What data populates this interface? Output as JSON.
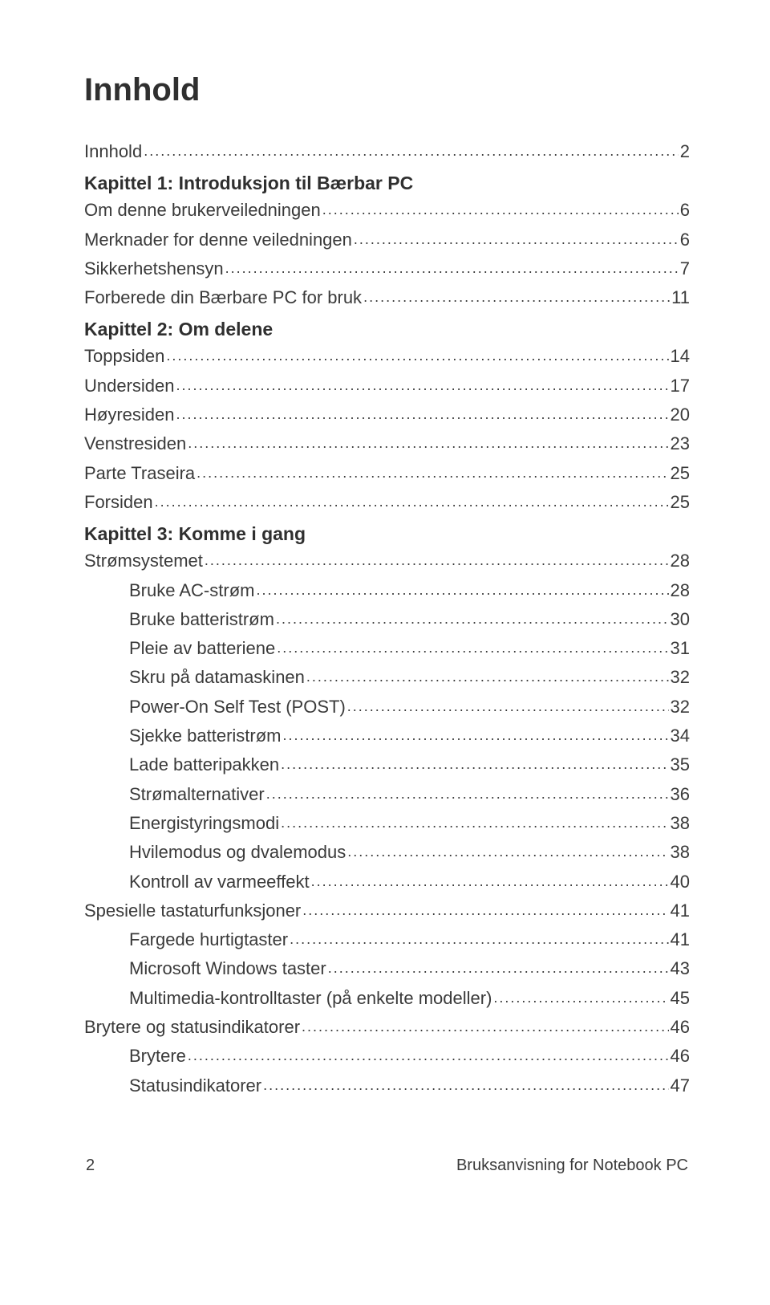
{
  "title": "Innhold",
  "toc": [
    {
      "kind": "entry",
      "level": 1,
      "label": "Innhold",
      "page": "2"
    },
    {
      "kind": "chapter",
      "label": "Kapittel 1: Introduksjon til Bærbar PC"
    },
    {
      "kind": "entry",
      "level": 1,
      "label": "Om denne brukerveiledningen",
      "page": "6"
    },
    {
      "kind": "entry",
      "level": 1,
      "label": "Merknader for denne veiledningen",
      "page": "6"
    },
    {
      "kind": "entry",
      "level": 1,
      "label": "Sikkerhetshensyn",
      "page": "7"
    },
    {
      "kind": "entry",
      "level": 1,
      "label": "Forberede din Bærbare PC for bruk",
      "page": "11"
    },
    {
      "kind": "chapter",
      "label": "Kapittel 2: Om delene"
    },
    {
      "kind": "entry",
      "level": 1,
      "label": "Toppsiden",
      "page": "14"
    },
    {
      "kind": "entry",
      "level": 1,
      "label": "Undersiden",
      "page": "17"
    },
    {
      "kind": "entry",
      "level": 1,
      "label": "Høyresiden",
      "page": "20"
    },
    {
      "kind": "entry",
      "level": 1,
      "label": "Venstresiden",
      "page": "23"
    },
    {
      "kind": "entry",
      "level": 1,
      "label": "Parte Traseira",
      "page": "25"
    },
    {
      "kind": "entry",
      "level": 1,
      "label": "Forsiden",
      "page": "25"
    },
    {
      "kind": "chapter",
      "label": "Kapittel 3: Komme i gang"
    },
    {
      "kind": "entry",
      "level": 1,
      "label": "Strømsystemet",
      "page": "28"
    },
    {
      "kind": "entry",
      "level": 2,
      "label": "Bruke AC-strøm",
      "page": "28"
    },
    {
      "kind": "entry",
      "level": 2,
      "label": "Bruke batteristrøm",
      "page": "30"
    },
    {
      "kind": "entry",
      "level": 2,
      "label": "Pleie av batteriene",
      "page": "31"
    },
    {
      "kind": "entry",
      "level": 2,
      "label": "Skru på datamaskinen",
      "page": "32"
    },
    {
      "kind": "entry",
      "level": 2,
      "label": "Power-On Self Test (POST)",
      "page": "32"
    },
    {
      "kind": "entry",
      "level": 2,
      "label": "Sjekke batteristrøm",
      "page": "34"
    },
    {
      "kind": "entry",
      "level": 2,
      "label": "Lade batteripakken",
      "page": "35"
    },
    {
      "kind": "entry",
      "level": 2,
      "label": "Strømalternativer",
      "page": "36"
    },
    {
      "kind": "entry",
      "level": 2,
      "label": "Energistyringsmodi",
      "page": "38"
    },
    {
      "kind": "entry",
      "level": 2,
      "label": "Hvilemodus og dvalemodus",
      "page": "38"
    },
    {
      "kind": "entry",
      "level": 2,
      "label": "Kontroll av varmeeffekt",
      "page": "40"
    },
    {
      "kind": "entry",
      "level": 1,
      "label": "Spesielle tastaturfunksjoner",
      "page": "41"
    },
    {
      "kind": "entry",
      "level": 2,
      "label": "Fargede hurtigtaster",
      "page": "41"
    },
    {
      "kind": "entry",
      "level": 2,
      "label": "Microsoft Windows taster",
      "page": "43"
    },
    {
      "kind": "entry",
      "level": 2,
      "label": "Multimedia-kontrolltaster (på enkelte modeller)",
      "page": "45"
    },
    {
      "kind": "entry",
      "level": 1,
      "label": "Brytere og statusindikatorer",
      "page": "46"
    },
    {
      "kind": "entry",
      "level": 2,
      "label": "Brytere ",
      "page": "46"
    },
    {
      "kind": "entry",
      "level": 2,
      "label": "Statusindikatorer",
      "page": "47"
    }
  ],
  "footer": {
    "page_number": "2",
    "doc_title": "Bruksanvisning for Notebook PC"
  }
}
